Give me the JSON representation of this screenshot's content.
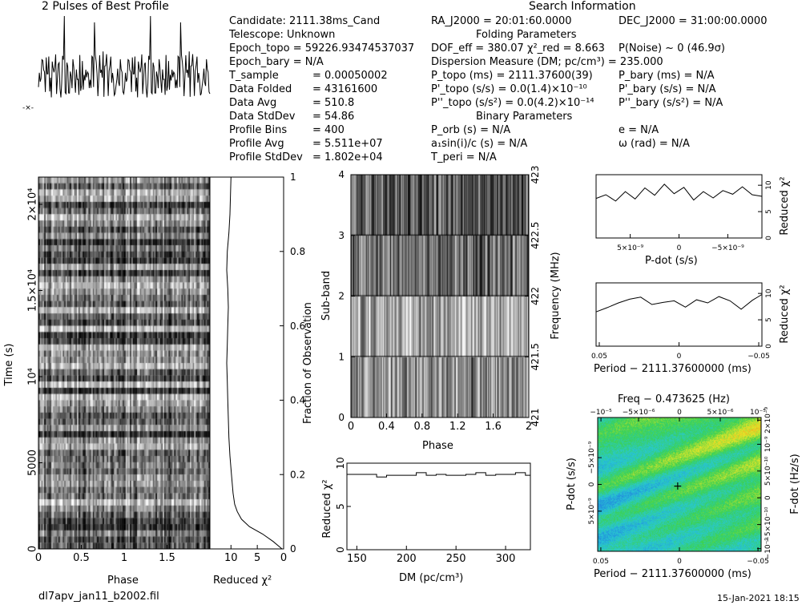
{
  "header": {
    "profile_title": "2 Pulses of Best Profile",
    "search_title": "Search Information"
  },
  "info_col1": [
    "Candidate:  2111.38ms_Cand",
    "Telescope:  Unknown",
    "Epoch_topo = 59226.93474537037",
    "Epoch_bary = N/A",
    "T_sample",
    "Data Folded",
    "Data Avg",
    "Data StdDev",
    "Profile Bins",
    "Profile Avg",
    "Profile StdDev"
  ],
  "info_col1_vals": [
    "=   0.00050002",
    "=   43161600",
    "=   510.8",
    "=   54.86",
    "=   400",
    "=   5.511e+07",
    "=   1.802e+04"
  ],
  "info_col2": [
    "RA_J2000 = 20:01:60.0000",
    "Folding Parameters",
    "DOF_eff = 380.07  χ²_red = 8.663",
    "Dispersion Measure (DM; pc/cm³) = 235.000",
    "P_topo (ms) = 2111.37600(39)",
    "P'_topo (s/s) = 0.0(1.4)×10⁻¹⁰",
    "P''_topo (s/s²) = 0.0(4.2)×10⁻¹⁴",
    "Binary Parameters",
    "P_orb (s) = N/A",
    "a₁sin(i)/c (s) = N/A",
    "T_peri = N/A"
  ],
  "info_col3": [
    "DEC_J2000 = 31:00:00.0000",
    "P(Noise) ~ 0   (46.9σ)",
    "P_bary (ms) = N/A",
    "P'_bary (s/s) = N/A",
    "P''_bary (s/s²) = N/A",
    "e = N/A",
    "ω (rad) = N/A"
  ],
  "footer": {
    "filename": "dl7apv_jan11_b2002.fil",
    "timestamp": "15-Jan-2021 18:15"
  },
  "chart_data": [
    {
      "id": "time_phase",
      "type": "heatmap",
      "xlabel": "Phase",
      "ylabel": "Time (s)",
      "xlim": [
        0,
        2
      ],
      "ylim": [
        0,
        21582
      ],
      "x_ticks": [
        "0",
        "0.5",
        "1",
        "1.5"
      ],
      "y_ticks": [
        "0",
        "5000",
        "10⁴",
        "1.5×10⁴",
        "2×10⁴"
      ],
      "colormap": "grayscale"
    },
    {
      "id": "time_chi2",
      "type": "line",
      "xlabel": "Reduced χ²",
      "ylabel": "Fraction of Observation",
      "xlim": [
        14,
        0
      ],
      "ylim": [
        0,
        1
      ],
      "x_ticks": [
        "10",
        "5",
        "0"
      ],
      "y_ticks": [
        "0",
        "0.2",
        "0.4",
        "0.6",
        "0.8",
        "1"
      ],
      "x": [
        0.3,
        2.0,
        4.0,
        6.5,
        8.0,
        8.8,
        9.3,
        9.6,
        9.9,
        10.2,
        10.4,
        10.5,
        10.6,
        10.7,
        10.8,
        10.7,
        10.6,
        10.5,
        10.6,
        10.8,
        10.7,
        10.4,
        10.2,
        10.0
      ],
      "y": [
        0.0,
        0.02,
        0.04,
        0.06,
        0.08,
        0.1,
        0.12,
        0.15,
        0.2,
        0.25,
        0.3,
        0.35,
        0.4,
        0.45,
        0.5,
        0.55,
        0.6,
        0.65,
        0.7,
        0.75,
        0.8,
        0.85,
        0.9,
        1.0
      ]
    },
    {
      "id": "profile",
      "type": "line",
      "title": "2 Pulses of Best Profile",
      "xlim": [
        0,
        2
      ],
      "colormap": "black"
    },
    {
      "id": "subband_phase",
      "type": "heatmap",
      "xlabel": "Phase",
      "ylabel": "Sub-band",
      "ylabel_right": "Frequency (MHz)",
      "xlim": [
        0,
        2
      ],
      "ylim": [
        0,
        4
      ],
      "x_ticks": [
        "0",
        "0.4",
        "0.8",
        "1.2",
        "1.6",
        "2"
      ],
      "y_ticks": [
        "0",
        "1",
        "2",
        "3",
        "4"
      ],
      "freq_ticks": [
        "421",
        "421.5",
        "422",
        "422.5",
        "423"
      ]
    },
    {
      "id": "dm_chi2",
      "type": "line",
      "xlabel": "DM (pc/cm³)",
      "ylabel": "Reduced χ²",
      "xlim": [
        140,
        325
      ],
      "ylim": [
        0,
        10
      ],
      "x_ticks": [
        "150",
        "200",
        "250",
        "300"
      ],
      "y_ticks": [
        "0",
        "5",
        "10"
      ],
      "x": [
        140,
        150,
        160,
        170,
        180,
        190,
        200,
        210,
        220,
        230,
        240,
        250,
        260,
        270,
        280,
        290,
        300,
        310,
        320,
        325
      ],
      "y": [
        8.7,
        8.7,
        8.7,
        8.4,
        8.6,
        8.6,
        8.6,
        8.9,
        8.6,
        8.7,
        8.6,
        8.6,
        8.7,
        8.9,
        8.6,
        8.7,
        8.7,
        8.9,
        8.6,
        8.6
      ]
    },
    {
      "id": "pdot_chi2",
      "type": "line",
      "xlabel": "P-dot (s/s)",
      "ylabel": "Reduced χ²",
      "xlim": [
        8.5e-09,
        -8.5e-09
      ],
      "ylim": [
        0,
        12
      ],
      "x_ticks": [
        "5×10⁻⁹",
        "0",
        "−5×10⁻⁹"
      ],
      "y_ticks": [
        "0",
        "5",
        "10"
      ],
      "x": [
        8.5,
        7.5,
        6.5,
        5.5,
        4.5,
        3.5,
        2.5,
        1.5,
        0.5,
        -0.5,
        -1.5,
        -2.5,
        -3.5,
        -4.5,
        -5.5,
        -6.5,
        -7.5,
        -8.5
      ],
      "y": [
        7.5,
        8.2,
        7.0,
        8.8,
        7.4,
        9.5,
        8.1,
        10.2,
        8.4,
        9.6,
        7.2,
        8.8,
        7.6,
        9.0,
        8.3,
        9.7,
        8.2,
        7.9
      ]
    },
    {
      "id": "period_chi2",
      "type": "line",
      "xlabel": "Period − 2111.37600000 (ms)",
      "ylabel": "Reduced χ²",
      "xlim": [
        0.052,
        -0.052
      ],
      "ylim": [
        0,
        12
      ],
      "x_ticks": [
        "0.05",
        "0",
        "−0.05"
      ],
      "y_ticks": [
        "0",
        "5",
        "10"
      ],
      "x": [
        0.052,
        0.045,
        0.038,
        0.031,
        0.024,
        0.017,
        0.01,
        0.003,
        -0.004,
        -0.011,
        -0.018,
        -0.025,
        -0.032,
        -0.039,
        -0.046,
        -0.052
      ],
      "y": [
        6.5,
        7.3,
        8.2,
        8.9,
        9.3,
        7.9,
        8.3,
        8.6,
        7.4,
        8.8,
        8.2,
        9.4,
        8.6,
        7.0,
        8.7,
        9.8
      ]
    },
    {
      "id": "pdot_period",
      "type": "heatmap",
      "title": "Freq − 0.473625 (Hz)",
      "xlabel": "Period − 2111.37600000 (ms)",
      "ylabel": "P-dot (s/s)",
      "ylabel_right": "F-dot (Hz/s)",
      "xlim": [
        0.052,
        -0.052
      ],
      "x_ticks": [
        "0.05",
        "0",
        "−0.05"
      ],
      "top_ticks": [
        "−10⁻⁵",
        "−5×10⁻⁶",
        "0",
        "5×10⁻⁶",
        "10⁻⁵"
      ],
      "y_ticks": [
        "5×10⁻⁹",
        "0",
        "−5×10⁻⁹"
      ],
      "right_ticks": [
        "−10⁻⁹",
        "−5×10⁻¹⁰",
        "0",
        "5×10⁻¹⁰",
        "10⁻⁹",
        "2×10⁻⁹"
      ],
      "colormap": "rainbow"
    }
  ]
}
